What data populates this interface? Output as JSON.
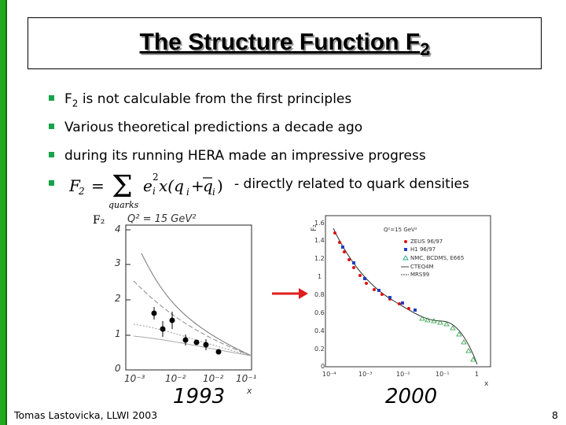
{
  "title": {
    "text": "The Structure Function F",
    "subscript": "2"
  },
  "bullets": [
    {
      "prefix": "F",
      "sub": "2",
      "text": " is not calculable from the first principles"
    },
    {
      "text": "Various theoretical predictions a decade ago"
    },
    {
      "text": "during its running HERA made an impressive progress"
    }
  ],
  "formula": {
    "lhs": "F",
    "lhs_sub": "2",
    "sum_under": "quarks",
    "term": "e",
    "term_sup": "2",
    "term_sub": "i",
    "rest": "x(q",
    "desc": "- directly related to quark densities"
  },
  "plot_1993": {
    "ylabel": "F₂",
    "q2_label": "Q² = 15 GeV²",
    "y_ticks": [
      "0",
      "1",
      "2",
      "3",
      "4"
    ],
    "x_ticks": [
      "10⁻³",
      "10⁻²",
      "10⁻²",
      "10⁻¹"
    ],
    "xlabel": "x",
    "year": "1993"
  },
  "plot_2000": {
    "ylabel": "F₂",
    "q2_label": "Q²=15 GeV²",
    "y_ticks": [
      "0",
      "0.2",
      "0.4",
      "0.6",
      "0.8",
      "1",
      "1.2",
      "1.4",
      "1.6"
    ],
    "x_ticks": [
      "10⁻⁴",
      "10⁻³",
      "10⁻²",
      "10⁻¹",
      "1"
    ],
    "xlabel": "x",
    "legend": [
      "ZEUS 96/97",
      "H1 96/97",
      "NMC, BCDMS, E665",
      "CTEQ4M",
      "MRS99"
    ],
    "year": "2000"
  },
  "colors": {
    "bullet": "#16a34a",
    "arrow": "#e11d1d",
    "bar": "#1faa1f"
  },
  "footer": {
    "author": "Tomas Lastovicka, LLWI 2003",
    "page": "8"
  }
}
